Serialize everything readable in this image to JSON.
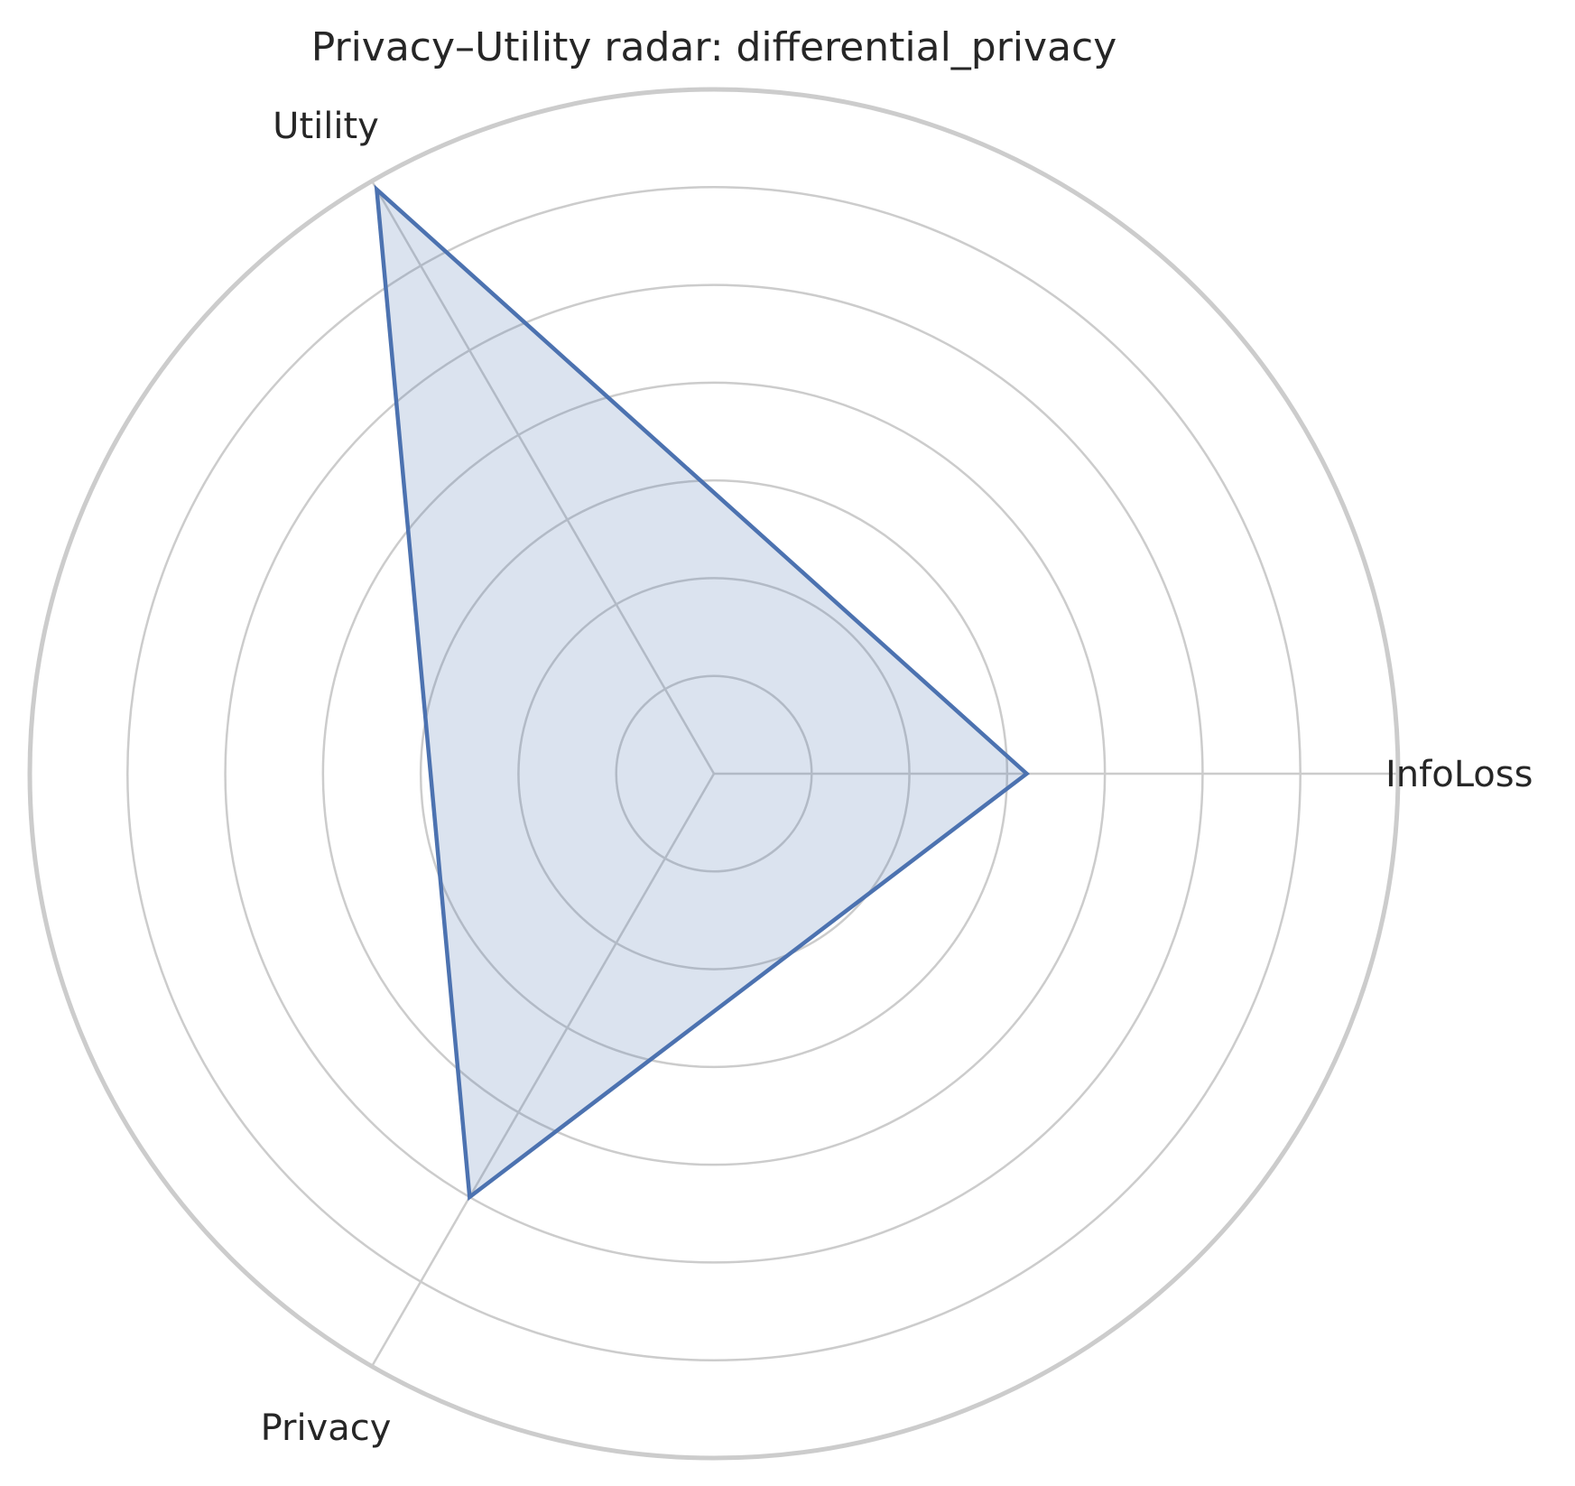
{
  "chart_data": {
    "type": "radar",
    "title": "Privacy–Utility radar: differential_privacy",
    "categories": [
      "InfoLoss",
      "Utility",
      "Privacy"
    ],
    "series": [
      {
        "values": [
          0.32,
          0.69,
          0.5
        ]
      }
    ],
    "rlim": [
      0,
      0.7
    ],
    "ring_values": [
      0.1,
      0.2,
      0.3,
      0.4,
      0.5,
      0.6
    ],
    "radial_tick_labels": "none",
    "grid": true,
    "colors": {
      "series": "#4c72b0",
      "grid": "#cccccc",
      "text": "#262626"
    }
  }
}
